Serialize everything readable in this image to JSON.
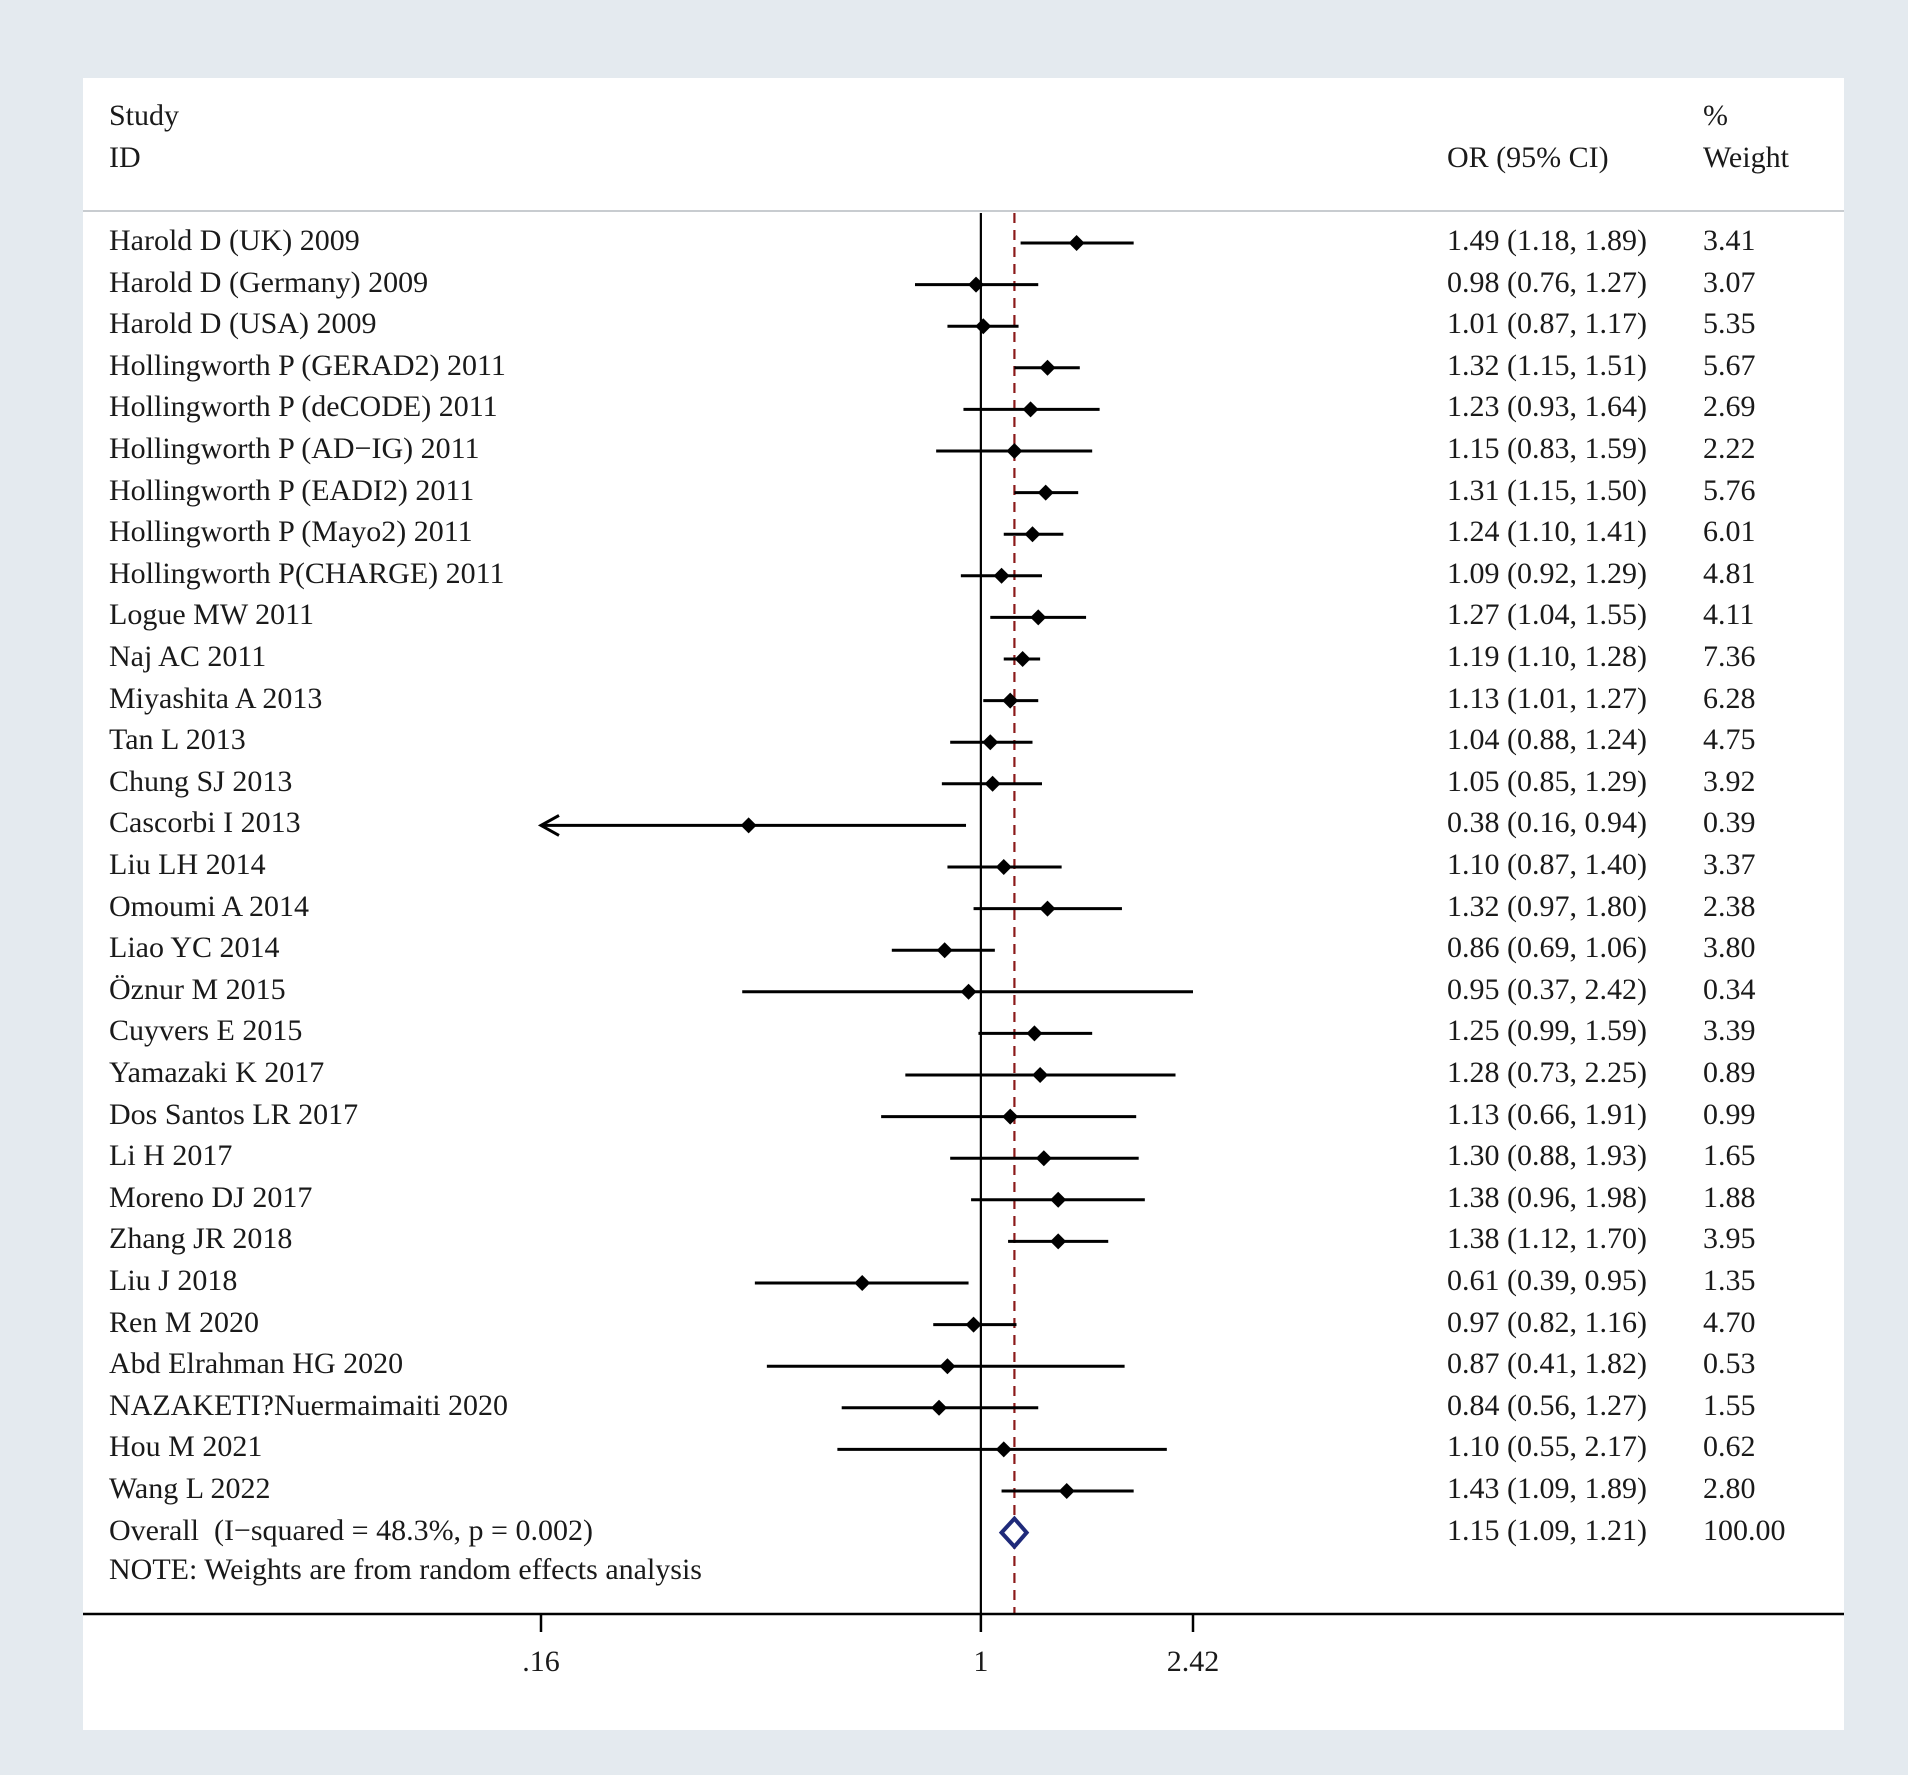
{
  "header": {
    "study_line1": "Study",
    "study_line2": "ID",
    "or_label": "OR (95% CI)",
    "weight_line1": "%",
    "weight_line2": "Weight"
  },
  "note": "NOTE: Weights are from random effects analysis",
  "colors": {
    "background": "#e4eaef",
    "panel": "#ffffff",
    "reference_line": "#8b1a1a",
    "overall_diamond": "#1f2a7a",
    "marks": "#000000"
  },
  "chart_data": {
    "type": "forest",
    "scale": "log",
    "xlim": [
      0.16,
      2.42
    ],
    "null_value": 1,
    "pooled_estimate": 1.15,
    "ticks": [
      {
        "value": 0.16,
        "label": ".16"
      },
      {
        "value": 1,
        "label": "1"
      },
      {
        "value": 2.42,
        "label": "2.42"
      }
    ],
    "studies": [
      {
        "id": "Harold D (UK) 2009",
        "or": 1.49,
        "lo": 1.18,
        "hi": 1.89,
        "ci_text": "1.49 (1.18, 1.89)",
        "weight": "3.41"
      },
      {
        "id": "Harold D (Germany) 2009",
        "or": 0.98,
        "lo": 0.76,
        "hi": 1.27,
        "ci_text": "0.98 (0.76, 1.27)",
        "weight": "3.07"
      },
      {
        "id": "Harold D (USA) 2009",
        "or": 1.01,
        "lo": 0.87,
        "hi": 1.17,
        "ci_text": "1.01 (0.87, 1.17)",
        "weight": "5.35"
      },
      {
        "id": "Hollingworth P (GERAD2) 2011",
        "or": 1.32,
        "lo": 1.15,
        "hi": 1.51,
        "ci_text": "1.32 (1.15, 1.51)",
        "weight": "5.67"
      },
      {
        "id": "Hollingworth P (deCODE) 2011",
        "or": 1.23,
        "lo": 0.93,
        "hi": 1.64,
        "ci_text": "1.23 (0.93, 1.64)",
        "weight": "2.69"
      },
      {
        "id": "Hollingworth P (AD−IG) 2011",
        "or": 1.15,
        "lo": 0.83,
        "hi": 1.59,
        "ci_text": "1.15 (0.83, 1.59)",
        "weight": "2.22"
      },
      {
        "id": "Hollingworth P (EADI2) 2011",
        "or": 1.31,
        "lo": 1.15,
        "hi": 1.5,
        "ci_text": "1.31 (1.15, 1.50)",
        "weight": "5.76"
      },
      {
        "id": "Hollingworth P (Mayo2) 2011",
        "or": 1.24,
        "lo": 1.1,
        "hi": 1.41,
        "ci_text": "1.24 (1.10, 1.41)",
        "weight": "6.01"
      },
      {
        "id": "Hollingworth P(CHARGE) 2011",
        "or": 1.09,
        "lo": 0.92,
        "hi": 1.29,
        "ci_text": "1.09 (0.92, 1.29)",
        "weight": "4.81"
      },
      {
        "id": "Logue MW 2011",
        "or": 1.27,
        "lo": 1.04,
        "hi": 1.55,
        "ci_text": "1.27 (1.04, 1.55)",
        "weight": "4.11"
      },
      {
        "id": "Naj AC 2011",
        "or": 1.19,
        "lo": 1.1,
        "hi": 1.28,
        "ci_text": "1.19 (1.10, 1.28)",
        "weight": "7.36"
      },
      {
        "id": "Miyashita A 2013",
        "or": 1.13,
        "lo": 1.01,
        "hi": 1.27,
        "ci_text": "1.13 (1.01, 1.27)",
        "weight": "6.28"
      },
      {
        "id": "Tan L 2013",
        "or": 1.04,
        "lo": 0.88,
        "hi": 1.24,
        "ci_text": "1.04 (0.88, 1.24)",
        "weight": "4.75"
      },
      {
        "id": "Chung SJ 2013",
        "or": 1.05,
        "lo": 0.85,
        "hi": 1.29,
        "ci_text": "1.05 (0.85, 1.29)",
        "weight": "3.92"
      },
      {
        "id": "Cascorbi I 2013",
        "or": 0.38,
        "lo": 0.16,
        "hi": 0.94,
        "ci_text": "0.38 (0.16, 0.94)",
        "weight": "0.39",
        "arrow_left": true
      },
      {
        "id": "Liu LH 2014",
        "or": 1.1,
        "lo": 0.87,
        "hi": 1.4,
        "ci_text": "1.10 (0.87, 1.40)",
        "weight": "3.37"
      },
      {
        "id": "Omoumi A 2014",
        "or": 1.32,
        "lo": 0.97,
        "hi": 1.8,
        "ci_text": "1.32 (0.97, 1.80)",
        "weight": "2.38"
      },
      {
        "id": "Liao YC 2014",
        "or": 0.86,
        "lo": 0.69,
        "hi": 1.06,
        "ci_text": "0.86 (0.69, 1.06)",
        "weight": "3.80"
      },
      {
        "id": "Öznur M 2015",
        "or": 0.95,
        "lo": 0.37,
        "hi": 2.42,
        "ci_text": "0.95 (0.37, 2.42)",
        "weight": "0.34"
      },
      {
        "id": "Cuyvers E 2015",
        "or": 1.25,
        "lo": 0.99,
        "hi": 1.59,
        "ci_text": "1.25 (0.99, 1.59)",
        "weight": "3.39"
      },
      {
        "id": "Yamazaki K 2017",
        "or": 1.28,
        "lo": 0.73,
        "hi": 2.25,
        "ci_text": "1.28 (0.73, 2.25)",
        "weight": "0.89"
      },
      {
        "id": "Dos Santos LR 2017",
        "or": 1.13,
        "lo": 0.66,
        "hi": 1.91,
        "ci_text": "1.13 (0.66, 1.91)",
        "weight": "0.99"
      },
      {
        "id": "Li H 2017",
        "or": 1.3,
        "lo": 0.88,
        "hi": 1.93,
        "ci_text": "1.30 (0.88, 1.93)",
        "weight": "1.65"
      },
      {
        "id": "Moreno DJ 2017",
        "or": 1.38,
        "lo": 0.96,
        "hi": 1.98,
        "ci_text": "1.38 (0.96, 1.98)",
        "weight": "1.88"
      },
      {
        "id": "Zhang JR 2018",
        "or": 1.38,
        "lo": 1.12,
        "hi": 1.7,
        "ci_text": "1.38 (1.12, 1.70)",
        "weight": "3.95"
      },
      {
        "id": "Liu J 2018",
        "or": 0.61,
        "lo": 0.39,
        "hi": 0.95,
        "ci_text": "0.61 (0.39, 0.95)",
        "weight": "1.35"
      },
      {
        "id": "Ren M 2020",
        "or": 0.97,
        "lo": 0.82,
        "hi": 1.16,
        "ci_text": "0.97 (0.82, 1.16)",
        "weight": "4.70"
      },
      {
        "id": "Abd Elrahman HG 2020",
        "or": 0.87,
        "lo": 0.41,
        "hi": 1.82,
        "ci_text": "0.87 (0.41, 1.82)",
        "weight": "0.53"
      },
      {
        "id": "NAZAKETI?Nuermaimaiti 2020",
        "or": 0.84,
        "lo": 0.56,
        "hi": 1.27,
        "ci_text": "0.84 (0.56, 1.27)",
        "weight": "1.55"
      },
      {
        "id": "Hou M 2021",
        "or": 1.1,
        "lo": 0.55,
        "hi": 2.17,
        "ci_text": "1.10 (0.55, 2.17)",
        "weight": "0.62"
      },
      {
        "id": "Wang L 2022",
        "or": 1.43,
        "lo": 1.09,
        "hi": 1.89,
        "ci_text": "1.43 (1.09, 1.89)",
        "weight": "2.80"
      }
    ],
    "overall": {
      "id": "Overall  (I−squared = 48.3%, p = 0.002)",
      "or": 1.15,
      "lo": 1.09,
      "hi": 1.21,
      "ci_text": "1.15 (1.09, 1.21)",
      "weight": "100.00"
    }
  }
}
